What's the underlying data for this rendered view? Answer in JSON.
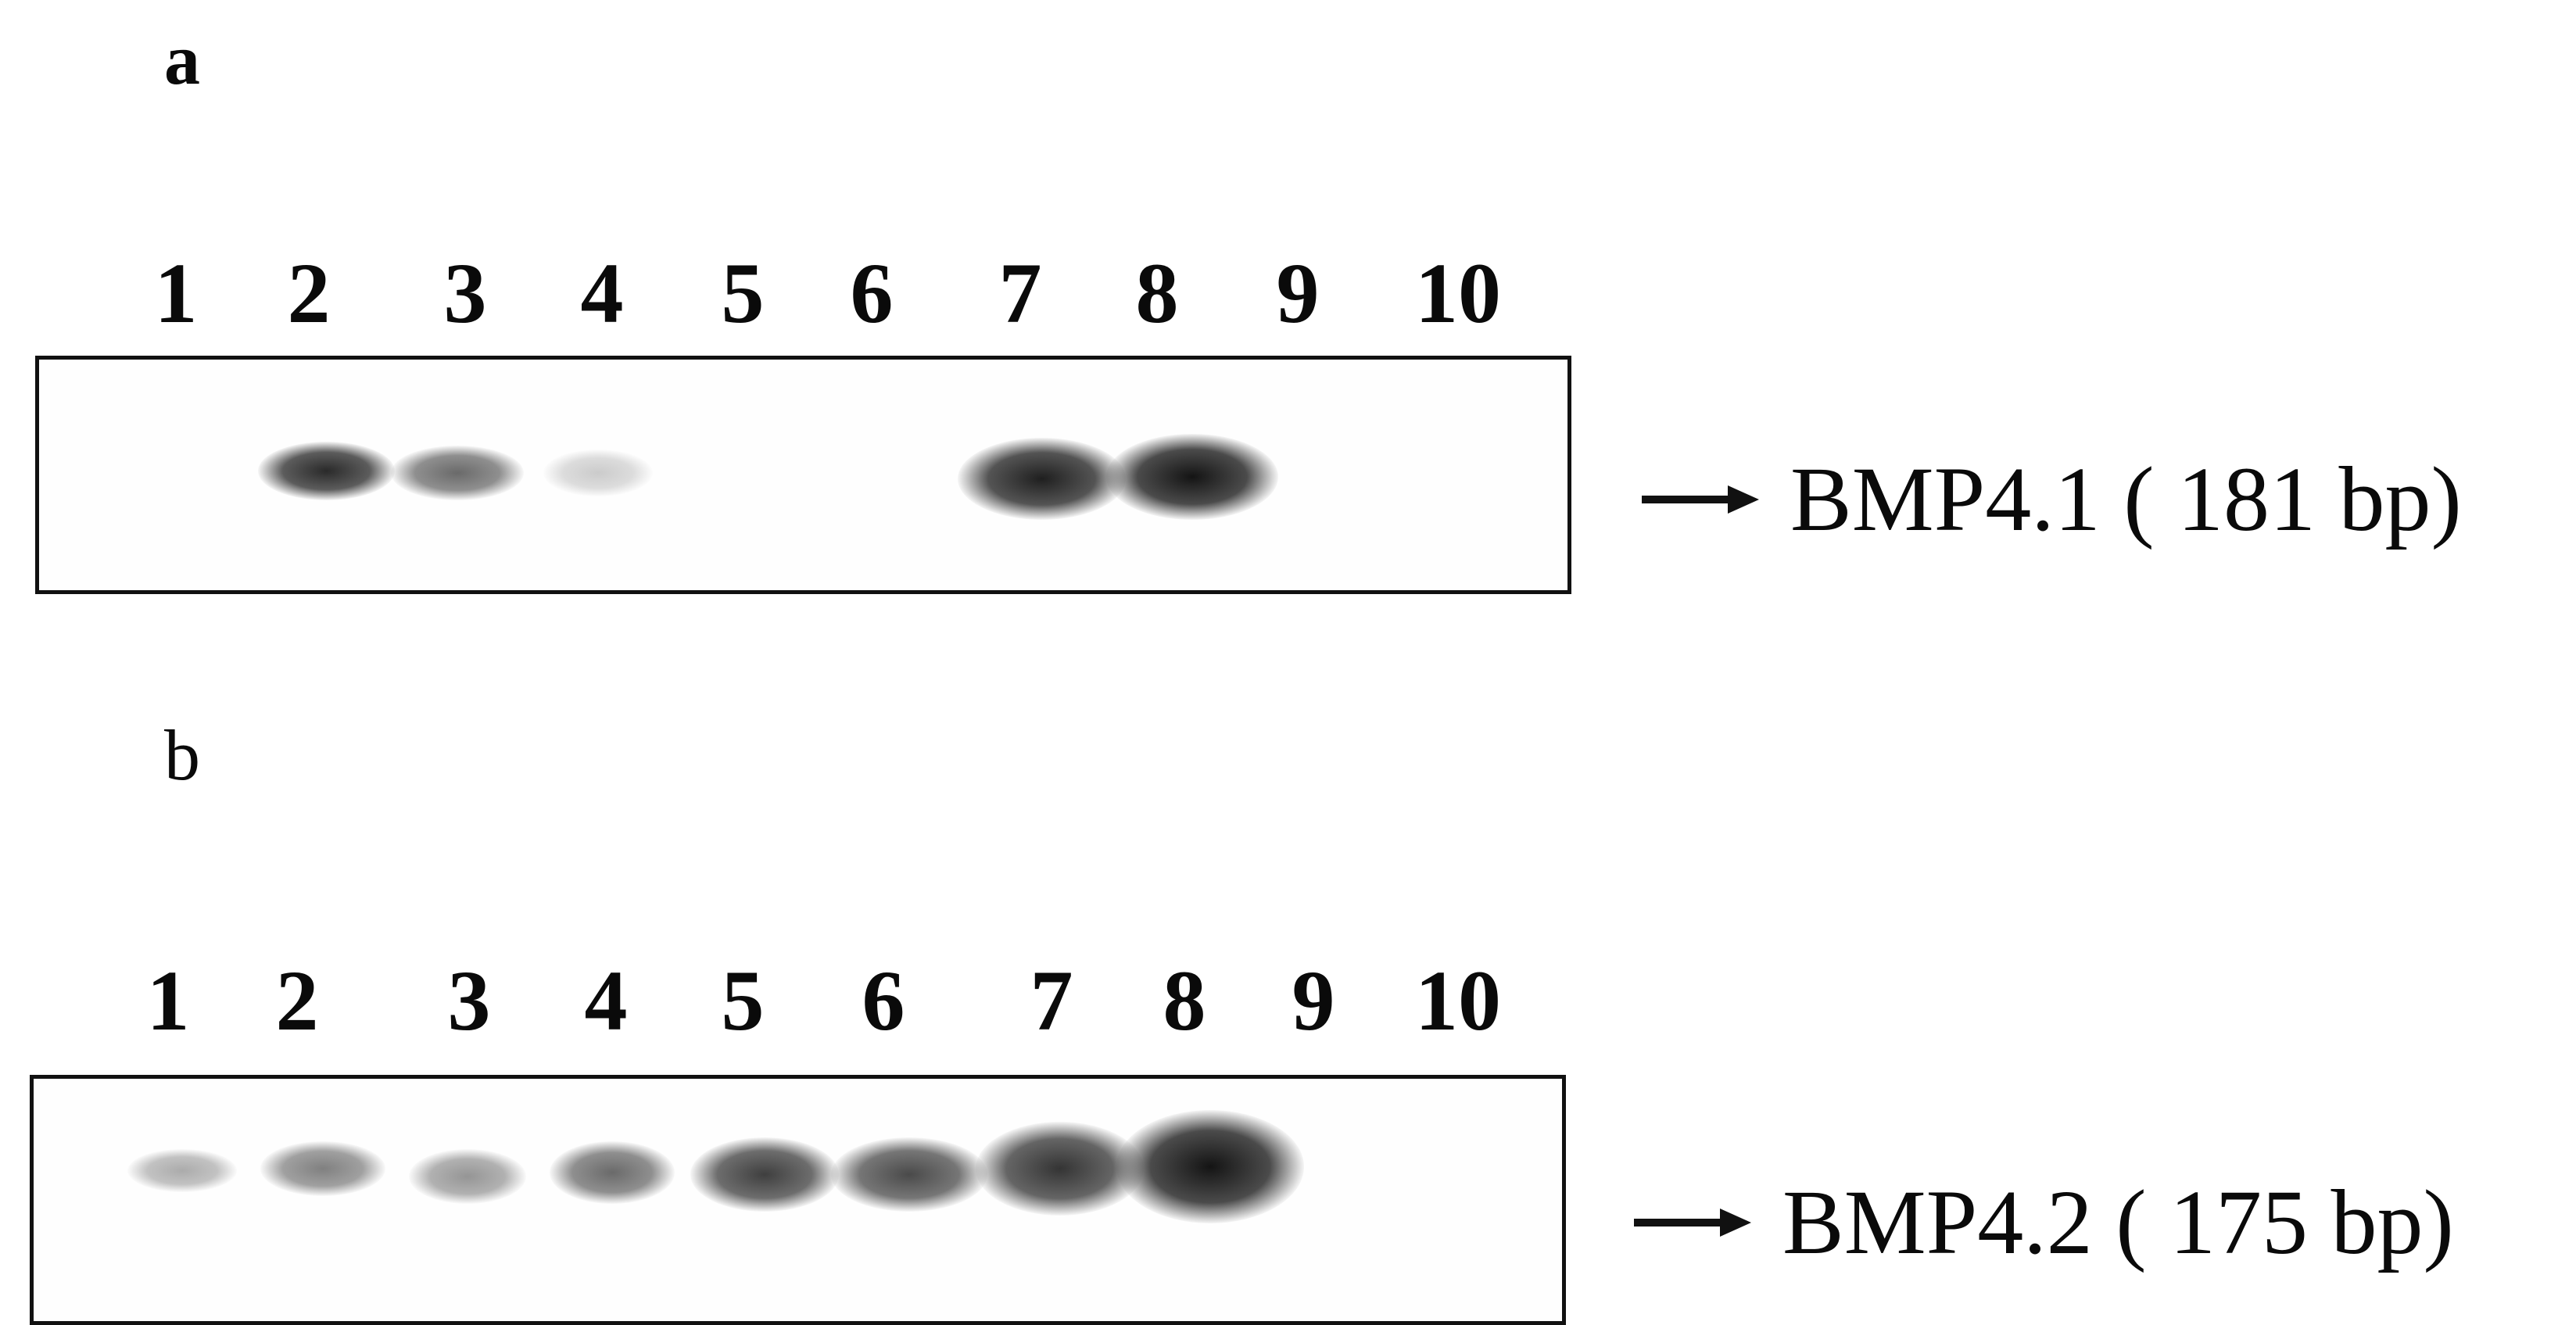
{
  "panel_a": {
    "letter": "a",
    "lanes": [
      "1",
      "2",
      "3",
      "4",
      "5",
      "6",
      "7",
      "8",
      "9",
      "10"
    ],
    "label": "BMP4.1 ( 181 bp)",
    "band_intensities": [
      0,
      0.9,
      0.6,
      0.15,
      0,
      0,
      0.95,
      1.0,
      0,
      0
    ]
  },
  "panel_b": {
    "letter": "b",
    "lanes": [
      "1",
      "2",
      "3",
      "4",
      "5",
      "6",
      "7",
      "8",
      "9",
      "10"
    ],
    "label": "BMP4.2 ( 175 bp)",
    "band_intensities": [
      0.3,
      0.5,
      0.4,
      0.6,
      0.8,
      0.75,
      0.85,
      1.0,
      0,
      0
    ]
  }
}
